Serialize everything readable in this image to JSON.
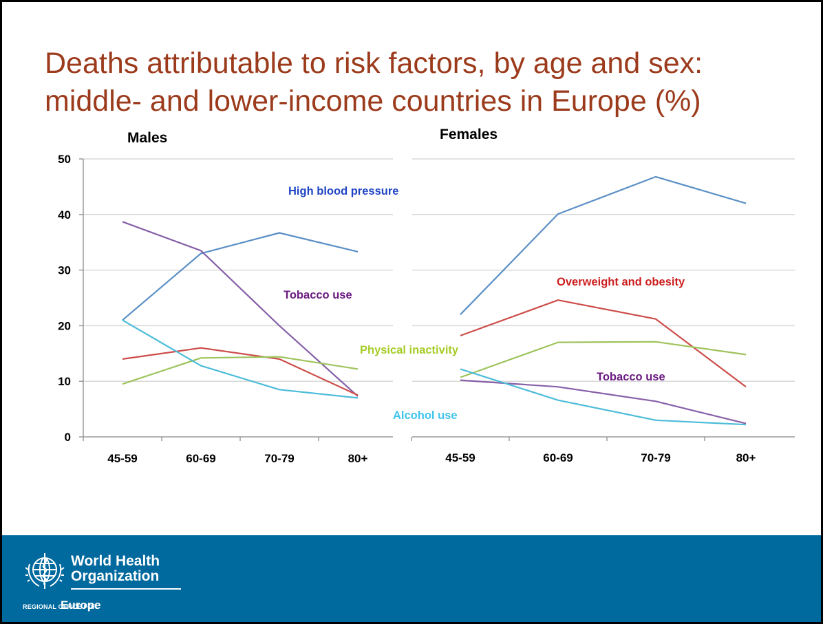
{
  "slide": {
    "title_line1": "Deaths attributable to risk factors, by age and sex:",
    "title_line2": "middle- and lower-income countries in Europe (%)",
    "footer": {
      "org_line1": "World Health",
      "org_line2": "Organization",
      "regional_office_label": "REGIONAL OFFICE FOR",
      "region": "Europe",
      "logo_icon": "who-emblem-icon"
    },
    "colors": {
      "title": "#9c3b1c",
      "footer_background": "#00699e",
      "high_blood_pressure": "#5a8fc6",
      "tobacco_use": "#8660a8",
      "overweight_and_obesity": "#cc4d49",
      "physical_inactivity": "#9dc35a",
      "alcohol_use": "#4cbcd9"
    }
  },
  "chart_data": [
    {
      "type": "line",
      "panel_title": "Males",
      "categories": [
        "45-59",
        "60-69",
        "70-79",
        "80+"
      ],
      "ylim": [
        0,
        50
      ],
      "yticks": [
        0,
        10,
        20,
        30,
        40,
        50
      ],
      "grid": true,
      "series": [
        {
          "name": "High blood pressure",
          "values": [
            21,
            33,
            36.7,
            33.3
          ]
        },
        {
          "name": "Tobacco use",
          "values": [
            38.7,
            33.5,
            20,
            7.3
          ]
        },
        {
          "name": "Overweight and obesity",
          "values": [
            14,
            16,
            14,
            7.5
          ]
        },
        {
          "name": "Physical inactivity",
          "values": [
            9.5,
            14.2,
            14.4,
            12.2
          ]
        },
        {
          "name": "Alcohol use",
          "values": [
            21,
            12.8,
            8.5,
            7
          ]
        }
      ],
      "annotations": [
        {
          "text": "Tobacco use",
          "series": "Tobacco use"
        },
        {
          "text": "Physical inactivity",
          "series": "Physical inactivity"
        },
        {
          "text": "Alcohol use",
          "series": "Alcohol use"
        }
      ]
    },
    {
      "type": "line",
      "panel_title": "Females",
      "categories": [
        "45-59",
        "60-69",
        "70-79",
        "80+"
      ],
      "ylim": [
        0,
        50
      ],
      "grid": true,
      "series": [
        {
          "name": "High blood pressure",
          "values": [
            22,
            40.1,
            46.8,
            42
          ]
        },
        {
          "name": "Overweight and obesity",
          "values": [
            18.2,
            24.6,
            21.2,
            9
          ]
        },
        {
          "name": "Physical inactivity",
          "values": [
            10.7,
            17,
            17.1,
            14.8
          ]
        },
        {
          "name": "Tobacco use",
          "values": [
            10.2,
            9,
            6.4,
            2.4
          ]
        },
        {
          "name": "Alcohol use",
          "values": [
            12.2,
            6.6,
            3,
            2.2
          ]
        }
      ],
      "annotations": [
        {
          "text": "High blood pressure",
          "series": "High blood pressure"
        },
        {
          "text": "Overweight and obesity",
          "series": "Overweight and obesity"
        },
        {
          "text": "Tobacco use",
          "series": "Tobacco use"
        }
      ]
    }
  ]
}
